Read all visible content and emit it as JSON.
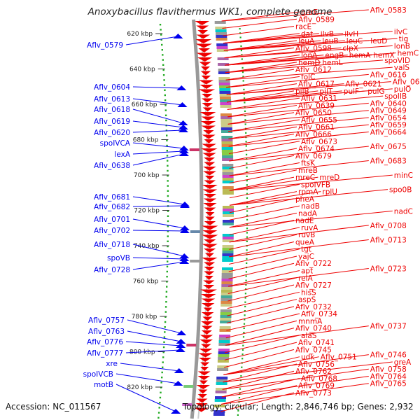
{
  "title": "Anoxybacillus flavithermus WK1, complete genome",
  "accession": "Accession: NC_011567",
  "topology": "Topology: circular; Length: 2,846,746 bp; Genes: 2,932",
  "colors": {
    "reverse_genes": "#0000ee",
    "forward_genes": "#ee0000",
    "ruler_dots": "#22aa22",
    "backbone": "#999999",
    "tick_text": "#222222"
  },
  "ruler_labels": [
    "620 kbp",
    "640 kbp",
    "660 kbp",
    "680 kbp",
    "700 kbp",
    "720 kbp",
    "740 kbp",
    "760 kbp",
    "780 kbp",
    "800 kbp",
    "820 kbp"
  ],
  "left_labels": [
    "Aflv_0579",
    "Aflv_0604",
    "Aflv_0613",
    "Aflv_0618",
    "Aflv_0619",
    "Aflv_0620",
    "spoIVCA",
    "lexA",
    "Aflv_0638",
    "Aflv_0681",
    "Aflv_0682",
    "Aflv_0701",
    "Aflv_0702",
    "Aflv_0718",
    "spoVB",
    "Aflv_0728",
    "Aflv_0757",
    "Aflv_0763",
    "Aflv_0776",
    "Aflv_0777",
    "xre",
    "spoIVCB",
    "motB"
  ],
  "right_labels": [
    [
      "gerE",
      "Aflv_0583"
    ],
    [
      "Aflv_0589"
    ],
    [
      "racE"
    ],
    [
      "dat",
      "ilvB",
      "ilvH",
      "ilvC"
    ],
    [
      "leuA",
      "leuB",
      "leuC",
      "leuD",
      "tig"
    ],
    [
      "Aflv_0598",
      "clpX",
      "lonB"
    ],
    [
      "lonA",
      "engB",
      "hemA",
      "hemX",
      "hemC"
    ],
    [
      "hemD",
      "hemL",
      "spoVID"
    ],
    [
      "Aflv_0612",
      "valS"
    ],
    [
      "folC",
      "Aflv_0616"
    ],
    [
      "Aflv_0617",
      "Aflv_0621",
      "Aflv_0622"
    ],
    [
      "pilB",
      "pilT",
      "pulF",
      "pulG",
      "pulO"
    ],
    [
      "Aflv_0631",
      "spoIIB"
    ],
    [
      "Aflv_0639",
      "Aflv_0640"
    ],
    [
      "Aflv_0650",
      "Aflv_0649"
    ],
    [
      "Aflv_0655",
      "Aflv_0654"
    ],
    [
      "Aflv_0661",
      "Aflv_0659"
    ],
    [
      "Aflv_0666",
      "Aflv_0664"
    ],
    [
      "Aflv_0673"
    ],
    [
      "Aflv_0674",
      "Aflv_0675"
    ],
    [
      "Aflv_0679"
    ],
    [
      "ftsK",
      "Aflv_0683"
    ],
    [
      "mreB"
    ],
    [
      "mreC",
      "mreD",
      "minC"
    ],
    [
      "spoIVFB"
    ],
    [
      "rpmA",
      "rplU",
      "spo0B"
    ],
    [
      "pheA"
    ],
    [
      "nadB"
    ],
    [
      "nadA",
      "nadC"
    ],
    [
      "nadE"
    ],
    [
      "ruvA",
      "Aflv_0708"
    ],
    [
      "ruvB"
    ],
    [
      "queA",
      "Aflv_0713"
    ],
    [
      "tgt"
    ],
    [
      "yajC"
    ],
    [
      "Aflv_0722"
    ],
    [
      "apt",
      "Aflv_0723"
    ],
    [
      "relA"
    ],
    [
      "Aflv_0727"
    ],
    [
      "hisS"
    ],
    [
      "aspS"
    ],
    [
      "Aflv_0732"
    ],
    [
      "Aflv_0734"
    ],
    [
      "mnmA"
    ],
    [
      "Aflv_0740",
      "Aflv_0737"
    ],
    [
      "alaS"
    ],
    [
      "Aflv_0741"
    ],
    [
      "Aflv_0745"
    ],
    [
      "udk",
      "Aflv_0751",
      "Aflv_0746"
    ],
    [
      "Aflv_0756",
      "greA"
    ],
    [
      "Aflv_0762",
      "Aflv_0758"
    ],
    [
      "Aflv_0768",
      "Aflv_0764"
    ],
    [
      "Aflv_0769",
      "Aflv_0765"
    ],
    [
      "Aflv_0773"
    ]
  ]
}
